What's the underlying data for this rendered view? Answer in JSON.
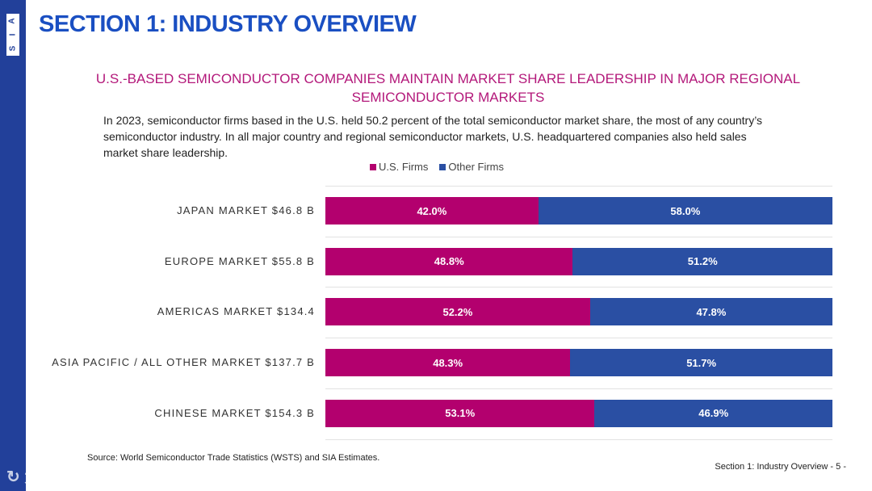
{
  "logo": {
    "letters": [
      "S",
      "I",
      "A"
    ]
  },
  "header": {
    "title": "SECTION 1: INDUSTRY OVERVIEW"
  },
  "subtitle": "U.S.-BASED SEMICONDUCTOR COMPANIES MAINTAIN MARKET SHARE LEADERSHIP IN MAJOR REGIONAL SEMICONDUCTOR MARKETS",
  "description": "In 2023, semiconductor firms based in the U.S. held 50.2 percent of the total semiconductor market share, the most of any country’s semiconductor industry. In all major country and regional semiconductor markets, U.S. headquartered companies also held sales market share leadership.",
  "colors": {
    "us": "#b3006e",
    "other": "#2a4fa3",
    "sidebar": "#22409a"
  },
  "chart_data": {
    "type": "bar",
    "stacked": true,
    "orientation": "horizontal",
    "legend": [
      "U.S. Firms",
      "Other Firms"
    ],
    "legend_position": "top",
    "categories": [
      "JAPAN MARKET $46.8 B",
      "EUROPE MARKET $55.8 B",
      "AMERICAS MARKET $134.4",
      "ASIA PACIFIC / ALL OTHER MARKET $137.7 B",
      "CHINESE MARKET $154.3 B"
    ],
    "series": [
      {
        "name": "U.S. Firms",
        "values": [
          42.0,
          48.8,
          52.2,
          48.3,
          53.1
        ],
        "labels": [
          "42.0%",
          "48.8%",
          "52.2%",
          "48.3%",
          "53.1%"
        ]
      },
      {
        "name": "Other Firms",
        "values": [
          58.0,
          51.2,
          47.8,
          51.7,
          46.9
        ],
        "labels": [
          "58.0%",
          "51.2%",
          "47.8%",
          "51.7%",
          "46.9%"
        ]
      }
    ],
    "xlim": [
      0,
      100
    ]
  },
  "footer": {
    "source": "Source: World Semiconductor Trade Statistics (WSTS) and SIA Estimates.",
    "page": "Section 1: Industry Overview - 5 -",
    "watermark": "大数跨境"
  }
}
